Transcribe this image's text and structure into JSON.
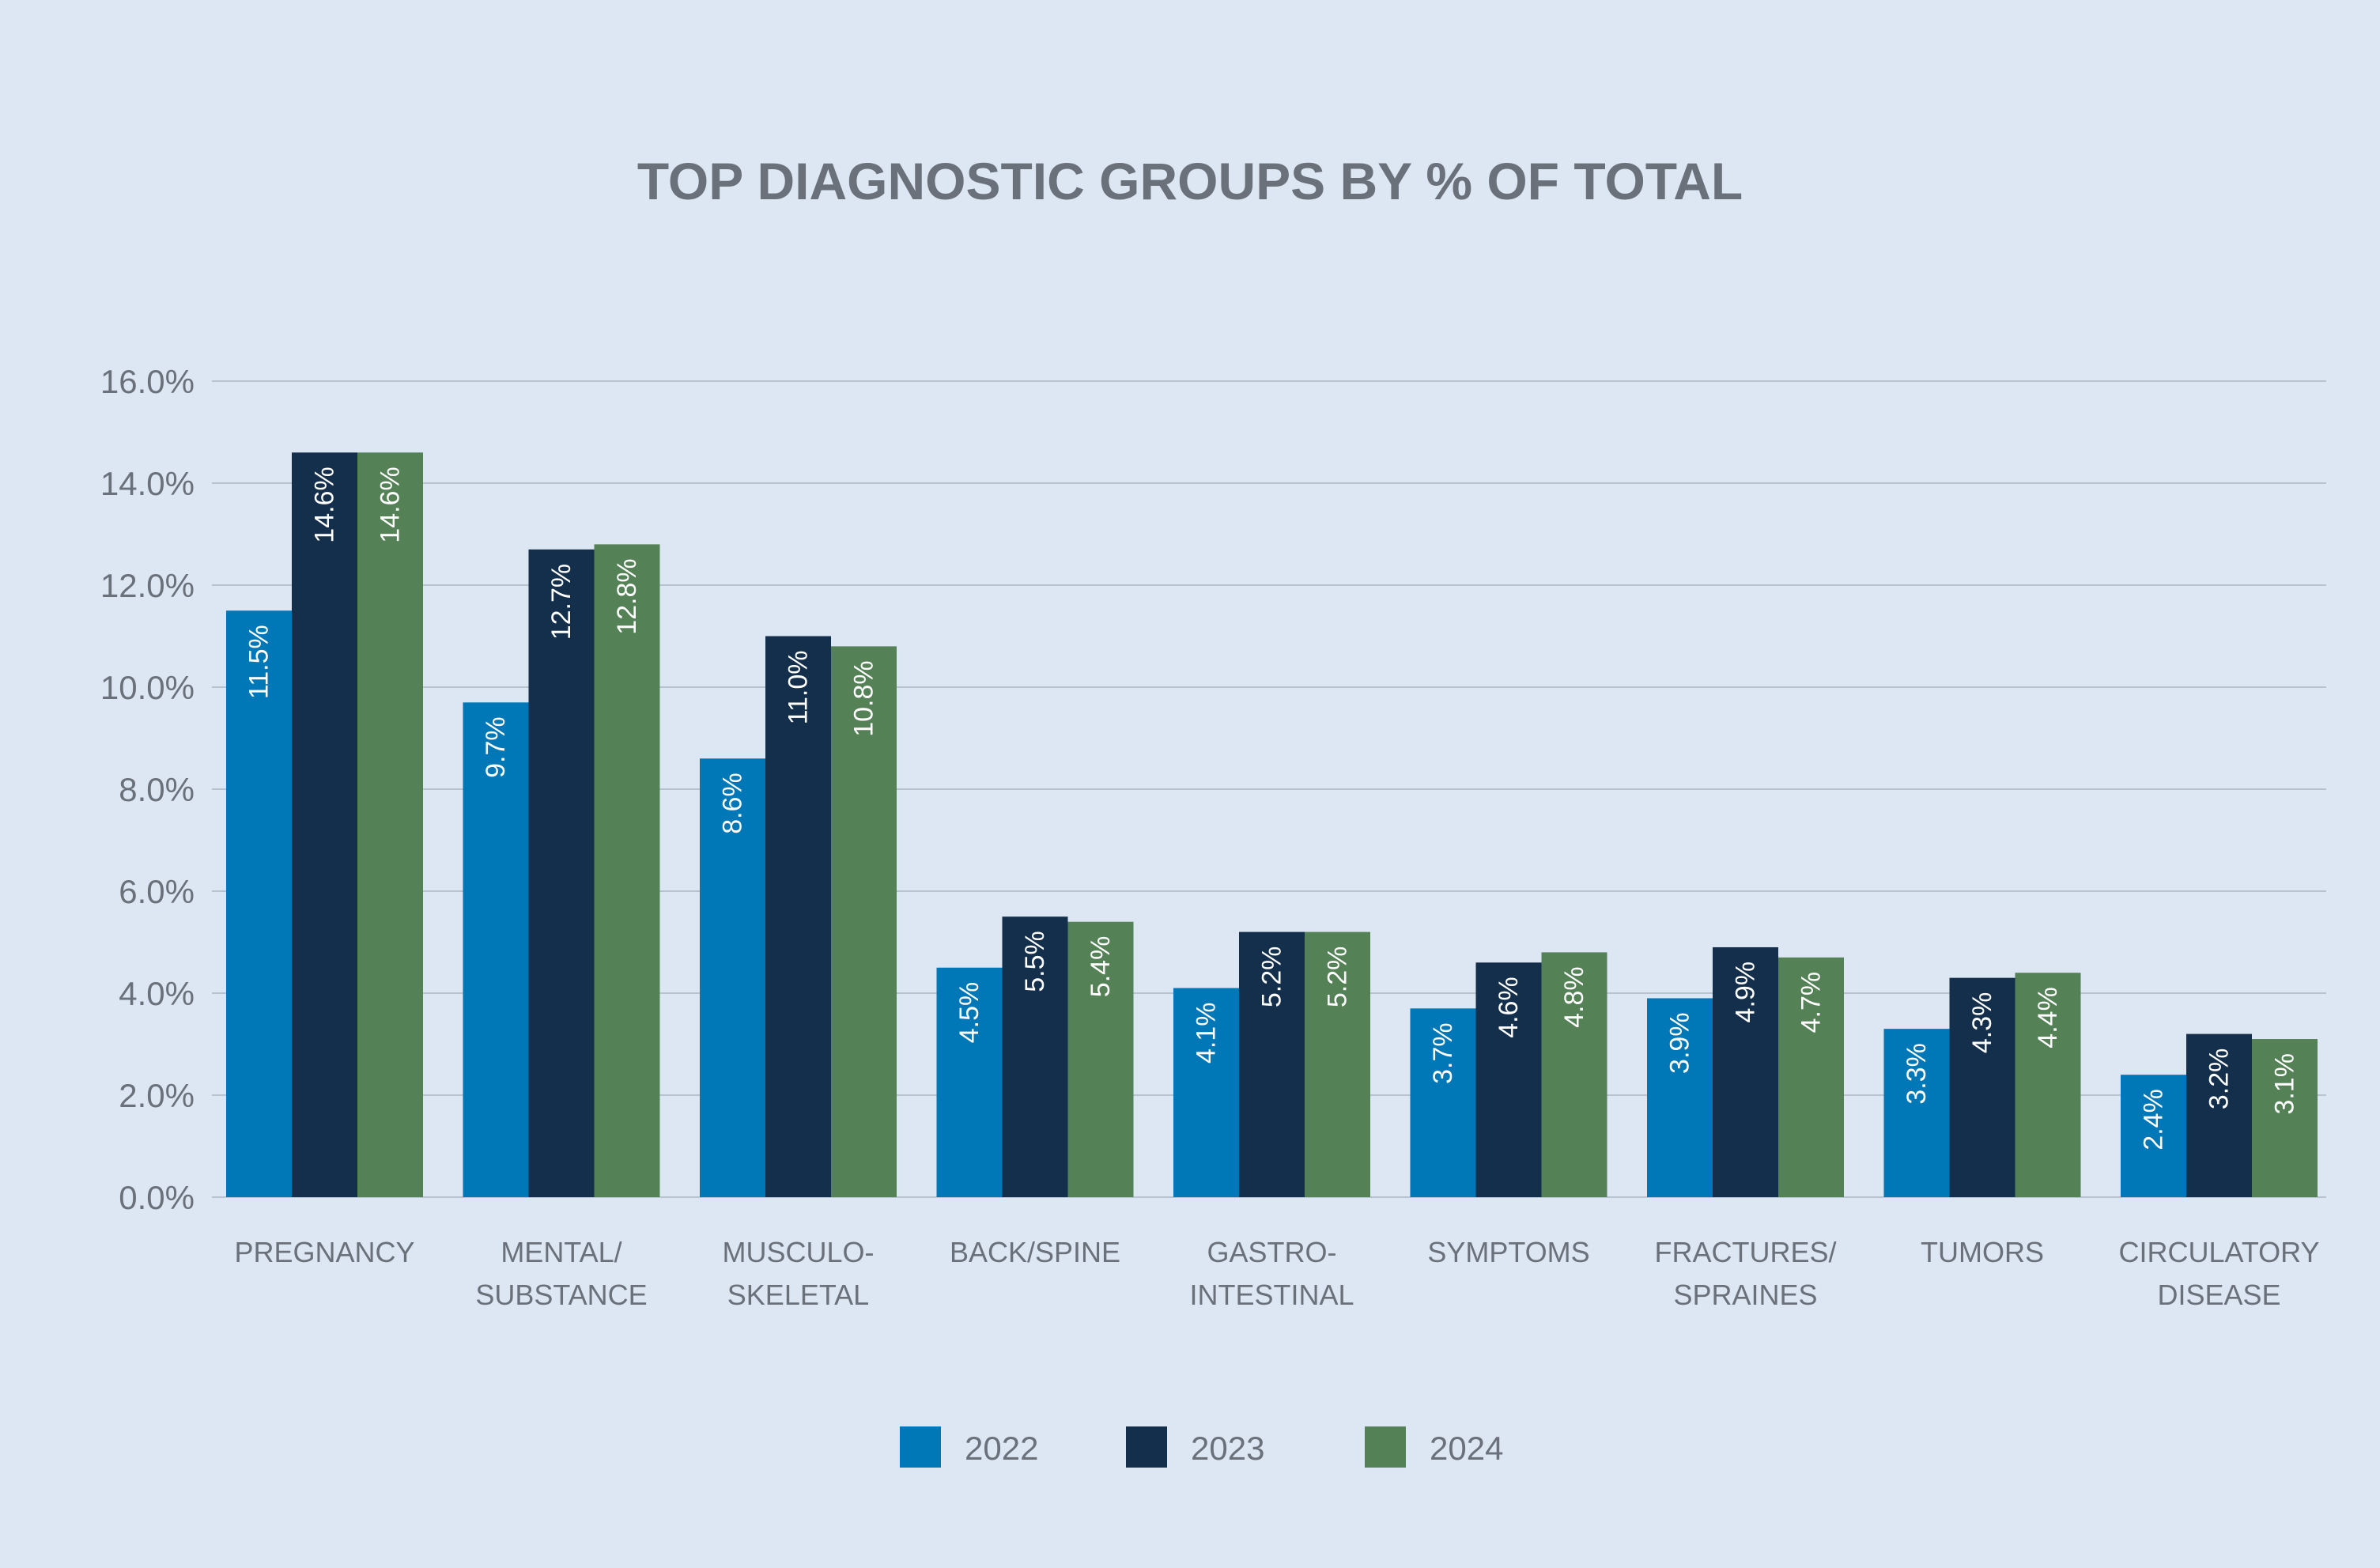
{
  "chart_data": {
    "type": "bar",
    "title": "TOP DIAGNOSTIC GROUPS BY % OF TOTAL",
    "categories": [
      [
        "PREGNANCY"
      ],
      [
        "MENTAL/",
        "SUBSTANCE"
      ],
      [
        "MUSCULO-",
        "SKELETAL"
      ],
      [
        "BACK/SPINE"
      ],
      [
        "GASTRO-",
        "INTESTINAL"
      ],
      [
        "SYMPTOMS"
      ],
      [
        "FRACTURES/",
        "SPRAINES"
      ],
      [
        "TUMORS"
      ],
      [
        "CIRCULATORY",
        "DISEASE"
      ]
    ],
    "series": [
      {
        "name": "2022",
        "color": "#0077b6",
        "values": [
          11.5,
          9.7,
          8.6,
          4.5,
          4.1,
          3.7,
          3.9,
          3.3,
          2.4
        ],
        "labels": [
          "11.5%",
          "9.7%",
          "8.6%",
          "4.5%",
          "4.1%",
          "3.7%",
          "3.9%",
          "3.3%",
          "2.4%"
        ]
      },
      {
        "name": "2023",
        "color": "#132f4b",
        "values": [
          14.6,
          12.7,
          11.0,
          5.5,
          5.2,
          4.6,
          4.9,
          4.3,
          3.2
        ],
        "labels": [
          "14.6%",
          "12.7%",
          "11.0%",
          "5.5%",
          "5.2%",
          "4.6%",
          "4.9%",
          "4.3%",
          "3.2%"
        ]
      },
      {
        "name": "2024",
        "color": "#548156",
        "values": [
          14.6,
          12.8,
          10.8,
          5.4,
          5.2,
          4.8,
          4.7,
          4.4,
          3.1
        ],
        "labels": [
          "14.6%",
          "12.8%",
          "10.8%",
          "5.4%",
          "5.2%",
          "4.8%",
          "4.7%",
          "4.4%",
          "3.1%"
        ]
      }
    ],
    "ylim": [
      0,
      16
    ],
    "yticks": [
      0,
      2,
      4,
      6,
      8,
      10,
      12,
      14,
      16
    ],
    "ytick_labels": [
      "0.0%",
      "2.0%",
      "4.0%",
      "6.0%",
      "8.0%",
      "10.0%",
      "12.0%",
      "14.0%",
      "16.0%"
    ],
    "grid": true,
    "legend": "bottom-center",
    "xlabel": "",
    "ylabel": ""
  }
}
